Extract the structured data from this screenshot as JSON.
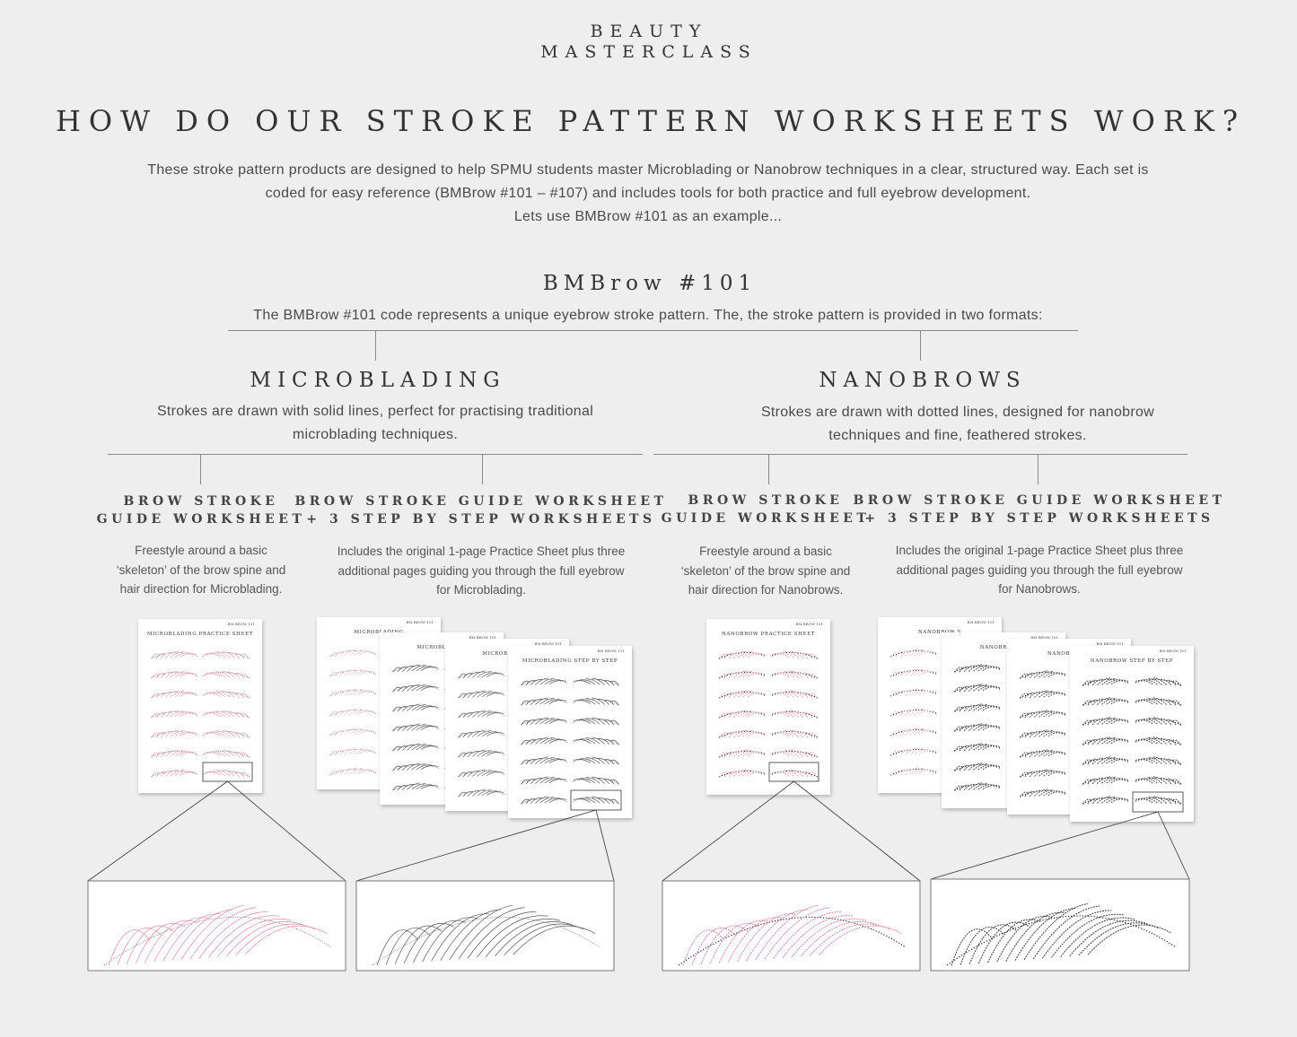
{
  "logo": {
    "line1": "BEAUTY",
    "line2": "MASTERCLASS"
  },
  "title": "HOW DO OUR STROKE PATTERN WORKSHEETS WORK?",
  "intro": [
    "These stroke pattern products are designed to help SPMU students master Microblading or Nanobrow techniques in a clear, structured way. Each set is",
    "coded for easy reference (BMBrow #101 – #107) and includes tools for both practice and full eyebrow development.",
    "Lets use BMBrow #101 as an example..."
  ],
  "code": {
    "heading": "BMBrow #101",
    "description": "The BMBrow #101 code represents a unique eyebrow stroke pattern. The, the stroke pattern is provided in two formats:"
  },
  "formats": [
    {
      "heading": "MICROBLADING",
      "description": [
        "Strokes are drawn with solid lines, perfect for practising traditional",
        "microblading techniques."
      ],
      "accent": "#d98ca0",
      "products": [
        {
          "heading": [
            "BROW STROKE",
            "GUIDE WORKSHEET"
          ],
          "description": [
            "Freestyle around a basic",
            "‘skeleton’ of the brow spine and",
            "hair direction for Microblading."
          ]
        },
        {
          "heading": [
            "BROW STROKE GUIDE WORKSHEET",
            "+ 3 STEP BY STEP WORKSHEETS"
          ],
          "description": [
            "Includes the original 1-page Practice Sheet plus three",
            "additional pages guiding you through the full eyebrow",
            "for Microblading."
          ]
        }
      ],
      "sheets": {
        "practice": "MICROBLADING PRACTICE SHEET",
        "stack": [
          "MICROBLADING",
          "MICROBLADING",
          "MICROBLADING",
          "MICROBLADING STEP BY STEP"
        ],
        "code": "BM BROW 101"
      }
    },
    {
      "heading": "NANOBROWS",
      "description": [
        "Strokes are drawn with dotted lines, designed for nanobrow",
        "techniques and fine, feathered strokes."
      ],
      "accent": "#d98ca0",
      "products": [
        {
          "heading": [
            "BROW STROKE",
            "GUIDE WORKSHEET"
          ],
          "description": [
            "Freestyle around a basic",
            "‘skeleton’ of the brow spine and",
            "hair direction for Nanobrows."
          ]
        },
        {
          "heading": [
            "BROW STROKE GUIDE WORKSHEET",
            "+ 3 STEP BY STEP WORKSHEETS"
          ],
          "description": [
            "Includes the original 1-page Practice Sheet plus three",
            "additional pages guiding you through the full eyebrow",
            "for Nanobrows."
          ]
        }
      ],
      "sheets": {
        "practice": "NANOBROW PRACTICE SHEET",
        "stack": [
          "NANOBROW S",
          "NANOBROW ST",
          "NANOBROW S",
          "NANOBROW STEP BY STEP"
        ],
        "code": "BM BROW 101"
      }
    }
  ]
}
